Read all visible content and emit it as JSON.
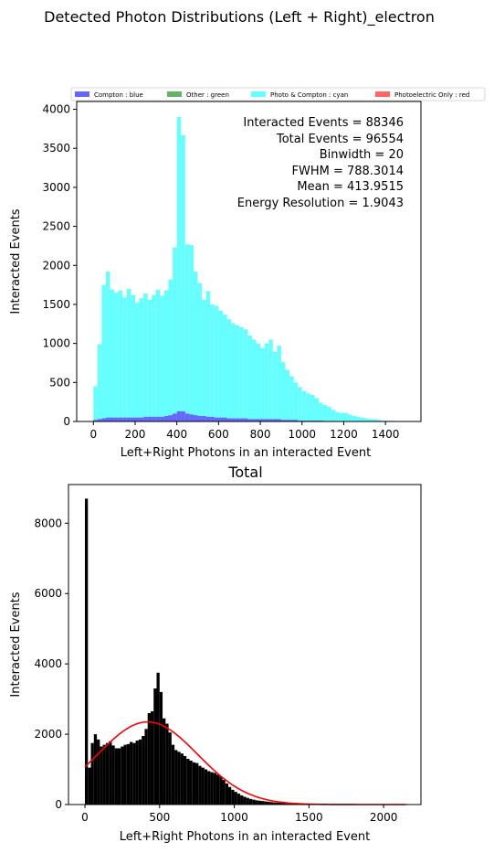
{
  "suptitle": "Detected Photon Distributions (Left + Right)_electron",
  "chart_data": [
    {
      "type": "bar",
      "title": "",
      "xlabel": "Left+Right Photons in an interacted Event",
      "ylabel": "Interacted Events",
      "xlim": [
        -80,
        1570
      ],
      "ylim": [
        0,
        4100
      ],
      "xticks": [
        0,
        200,
        400,
        600,
        800,
        1000,
        1200,
        1400
      ],
      "yticks": [
        0,
        500,
        1000,
        1500,
        2000,
        2500,
        3000,
        3500,
        4000
      ],
      "binwidth": 20,
      "legend": {
        "placement": "top",
        "entries": [
          {
            "label": "Compton : blue",
            "color": "#6666ff"
          },
          {
            "label": "Other : green",
            "color": "#66b266"
          },
          {
            "label": "Photo & Compton : cyan",
            "color": "#66ffff"
          },
          {
            "label": "Photoelectric Only : red",
            "color": "#ff6666"
          }
        ]
      },
      "annotations": [
        "Interacted Events = 88346",
        "Total Events = 96554",
        "Binwidth = 20",
        "FWHM = 788.3014",
        "Mean = 413.9515",
        "Energy Resolution = 1.9043"
      ],
      "series": [
        {
          "name": "Photo & Compton",
          "color": "#66ffff",
          "bin_start": 0,
          "values": [
            450,
            990,
            1750,
            1920,
            1690,
            1650,
            1680,
            1590,
            1700,
            1620,
            1520,
            1580,
            1640,
            1560,
            1620,
            1690,
            1610,
            1680,
            1820,
            2230,
            3900,
            3670,
            2270,
            2260,
            1920,
            1770,
            1560,
            1670,
            1500,
            1480,
            1420,
            1370,
            1310,
            1260,
            1230,
            1210,
            1180,
            1100,
            1050,
            1000,
            940,
            1000,
            1050,
            890,
            970,
            760,
            660,
            580,
            500,
            440,
            390,
            360,
            340,
            300,
            240,
            210,
            190,
            150,
            120,
            110,
            110,
            90,
            70,
            60,
            50,
            40,
            30,
            30,
            20,
            10,
            10,
            10,
            5,
            5
          ]
        },
        {
          "name": "Compton",
          "color": "#6666ff",
          "bin_start": 0,
          "values": [
            20,
            30,
            40,
            50,
            50,
            50,
            50,
            50,
            50,
            50,
            50,
            50,
            60,
            60,
            60,
            60,
            60,
            70,
            80,
            100,
            130,
            130,
            100,
            90,
            80,
            70,
            70,
            60,
            60,
            50,
            50,
            50,
            40,
            40,
            40,
            40,
            40,
            30,
            30,
            30,
            30,
            30,
            30,
            30,
            30,
            20,
            20,
            20,
            20,
            10,
            10,
            10,
            10,
            10,
            10,
            5,
            5,
            5,
            5,
            5
          ]
        }
      ]
    },
    {
      "type": "bar",
      "title": "Total",
      "xlabel": "Left+Right Photons in an interacted Event",
      "ylabel": "Interacted Events",
      "xlim": [
        -110,
        2250
      ],
      "ylim": [
        0,
        9100
      ],
      "xticks": [
        0,
        500,
        1000,
        1500,
        2000
      ],
      "yticks": [
        0,
        2000,
        4000,
        6000,
        8000
      ],
      "binwidth": 20,
      "series": [
        {
          "name": "Total",
          "color": "#000000",
          "bin_start": 0,
          "values": [
            8700,
            1050,
            1750,
            2000,
            1850,
            1650,
            1700,
            1750,
            1800,
            1680,
            1600,
            1600,
            1650,
            1700,
            1720,
            1780,
            1750,
            1820,
            1850,
            1950,
            2150,
            2600,
            2650,
            3300,
            3750,
            3200,
            2450,
            2300,
            2050,
            1700,
            1550,
            1500,
            1450,
            1380,
            1300,
            1250,
            1200,
            1180,
            1100,
            1050,
            1000,
            950,
            920,
            900,
            850,
            800,
            700,
            600,
            500,
            420,
            360,
            310,
            260,
            220,
            190,
            160,
            140,
            120,
            110,
            100,
            90,
            80,
            70,
            60,
            55,
            50,
            45,
            40,
            35,
            30,
            28,
            26,
            24,
            22,
            20,
            18,
            16,
            14,
            12,
            10,
            9,
            8,
            7,
            6,
            5,
            4,
            3,
            3,
            2,
            2,
            2,
            1,
            1,
            1,
            1,
            1,
            1,
            1,
            1,
            1,
            1,
            1,
            1,
            1,
            1,
            1,
            1,
            1
          ]
        }
      ],
      "fit": {
        "label": "Gaussian fit",
        "color": "#ff0000",
        "mean": 420,
        "sigma": 335,
        "amplitude": 2350,
        "x_range": [
          0,
          2150
        ]
      }
    }
  ]
}
